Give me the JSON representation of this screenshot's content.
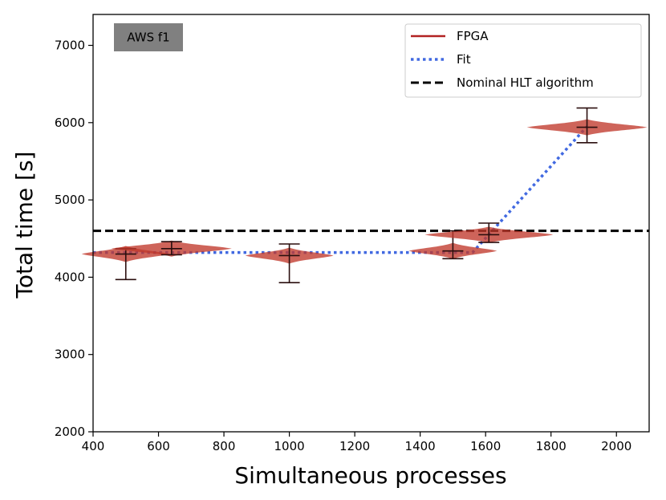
{
  "chart_data": {
    "type": "violin",
    "xlabel": "Simultaneous processes",
    "ylabel": "Total time [s]",
    "xlim": [
      400,
      2100
    ],
    "ylim": [
      2000,
      7400
    ],
    "xticks": [
      400,
      600,
      800,
      1000,
      1200,
      1400,
      1600,
      1800,
      2000
    ],
    "yticks": [
      2000,
      3000,
      4000,
      5000,
      6000,
      7000
    ],
    "badge": "AWS f1",
    "legend": {
      "placement": "top-right",
      "entries": [
        {
          "label": "FPGA",
          "style": "solid",
          "color": "#b22222"
        },
        {
          "label": "Fit",
          "style": "dotted",
          "color": "#4169e1"
        },
        {
          "label": "Nominal HLT algorithm",
          "style": "dashed",
          "color": "#000000"
        }
      ]
    },
    "nominal_hlt": 4600,
    "fit": {
      "x": [
        400,
        1560,
        1910
      ],
      "y": [
        4320,
        4320,
        5950
      ]
    },
    "violins": [
      {
        "x": 500,
        "median": 4300,
        "min": 3970,
        "max": 4370,
        "halfwidth": 55
      },
      {
        "x": 640,
        "median": 4370,
        "min": 4290,
        "max": 4460,
        "halfwidth": 75
      },
      {
        "x": 1000,
        "median": 4280,
        "min": 3930,
        "max": 4430,
        "halfwidth": 55
      },
      {
        "x": 1500,
        "median": 4340,
        "min": 4240,
        "max": 4600,
        "halfwidth": 55
      },
      {
        "x": 1610,
        "median": 4550,
        "min": 4450,
        "max": 4700,
        "halfwidth": 80
      },
      {
        "x": 1910,
        "median": 5940,
        "min": 5740,
        "max": 6190,
        "halfwidth": 75
      }
    ]
  }
}
